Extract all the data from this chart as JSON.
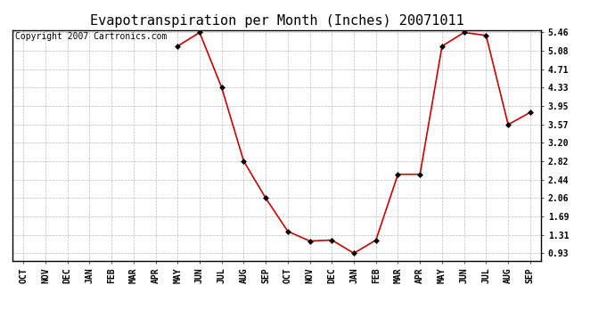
{
  "title": "Evapotranspiration per Month (Inches) 20071011",
  "copyright": "Copyright 2007 Cartronics.com",
  "months": [
    "OCT",
    "NOV",
    "DEC",
    "JAN",
    "FEB",
    "MAR",
    "APR",
    "MAY",
    "JUN",
    "JUL",
    "AUG",
    "SEP",
    "OCT",
    "NOV",
    "DEC",
    "JAN",
    "FEB",
    "MAR",
    "APR",
    "MAY",
    "JUN",
    "JUL",
    "AUG",
    "SEP"
  ],
  "values": [
    null,
    null,
    null,
    null,
    null,
    null,
    null,
    5.18,
    5.46,
    4.33,
    2.82,
    2.06,
    1.38,
    1.18,
    1.2,
    0.93,
    1.2,
    2.55,
    2.55,
    5.18,
    5.46,
    5.4,
    3.57,
    3.82
  ],
  "yticks": [
    0.93,
    1.31,
    1.69,
    2.06,
    2.44,
    2.82,
    3.2,
    3.57,
    3.95,
    4.33,
    4.71,
    5.08,
    5.46
  ],
  "line_color": "#cc0000",
  "marker": "D",
  "marker_size": 3,
  "bg_color": "#ffffff",
  "grid_color": "#aaaaaa",
  "title_fontsize": 11,
  "copyright_fontsize": 7,
  "tick_fontsize": 7,
  "ytick_fontsize": 7
}
